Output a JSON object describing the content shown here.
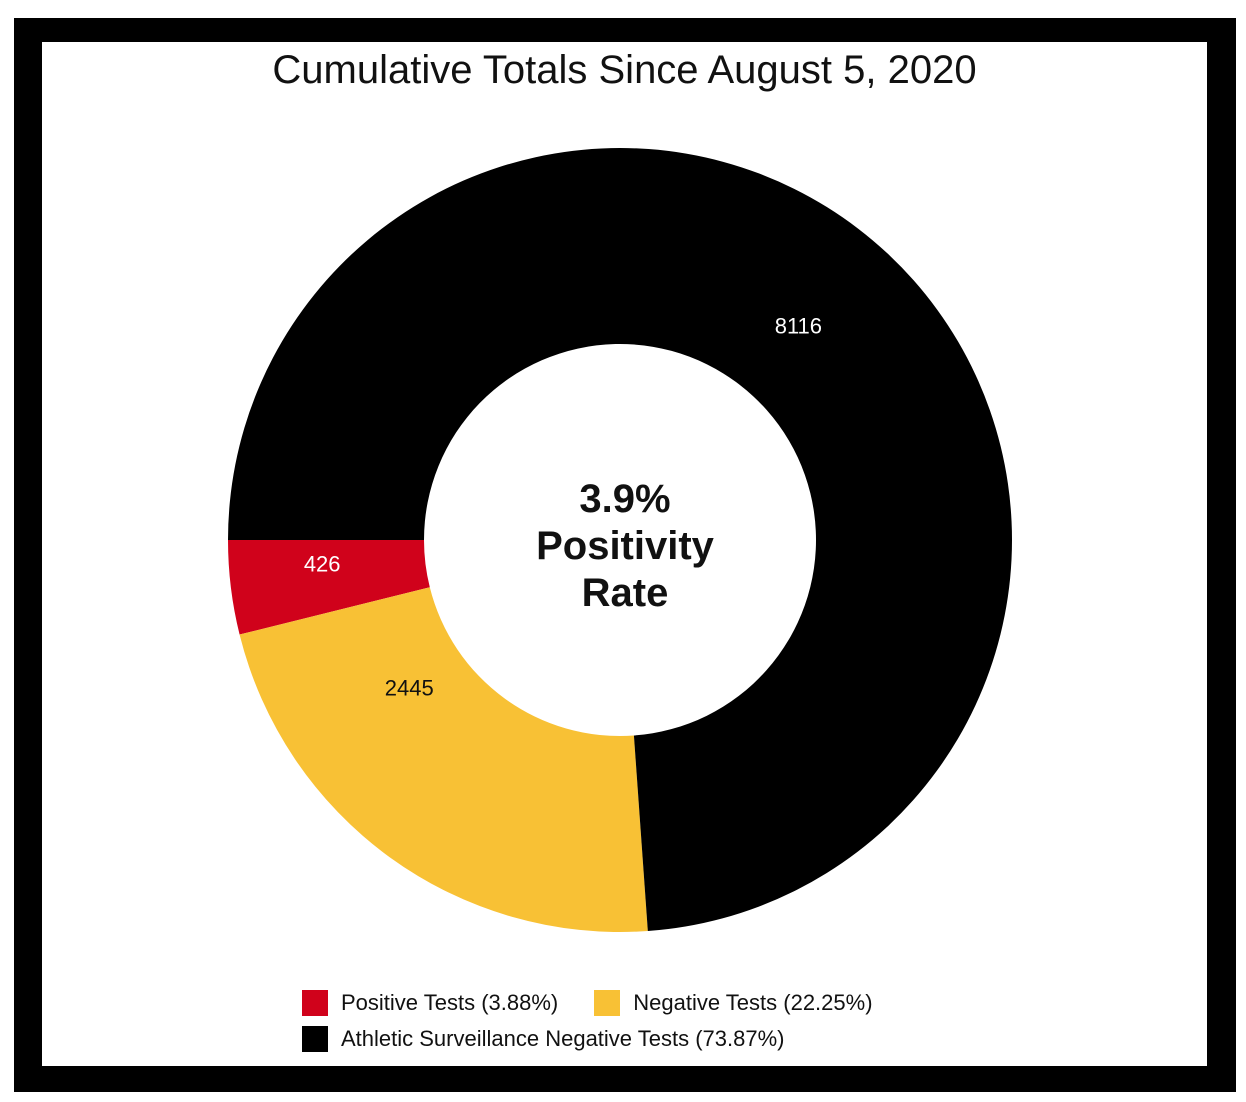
{
  "chart_data": {
    "type": "pie",
    "title": "Cumulative Totals Since August 5, 2020",
    "center_label": [
      "3.9%",
      "Positivity",
      "Rate"
    ],
    "slices": [
      {
        "label": "Positive Tests (3.88%)",
        "value": 426,
        "color": "#d0021b",
        "label_color": "#ffffff"
      },
      {
        "label": "Negative Tests (22.25%)",
        "value": 2445,
        "color": "#f8c135",
        "label_color": "#111111"
      },
      {
        "label": "Athletic Surveillance Negative Tests (73.87%)",
        "value": 8116,
        "color": "#000000",
        "label_color": "#ffffff"
      }
    ],
    "legend_position": "bottom"
  }
}
